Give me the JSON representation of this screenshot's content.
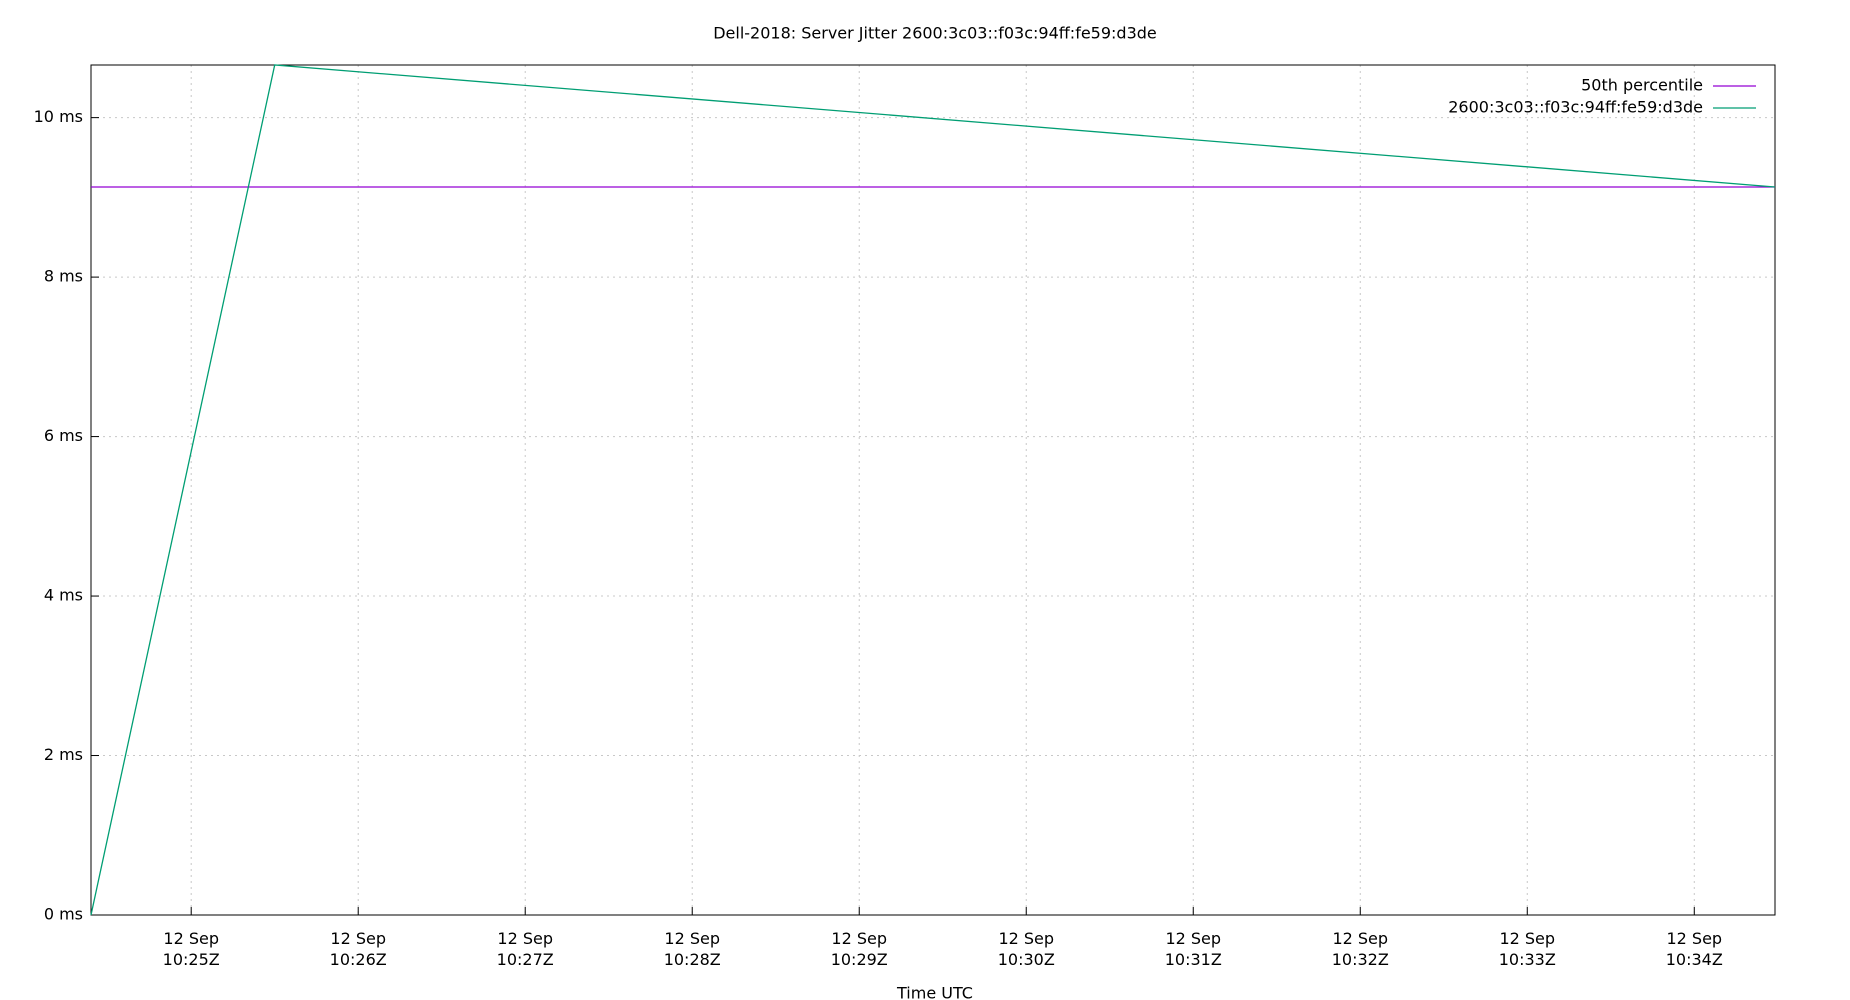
{
  "chart_data": {
    "type": "line",
    "title": "Dell-2018: Server Jitter 2600:3c03::f03c:94ff:fe59:d3de",
    "x_label": "Time UTC",
    "x": [
      "12 Sep 10:24:24",
      "12 Sep 10:25:30",
      "12 Sep 10:34:29"
    ],
    "series": [
      {
        "name": "50th percentile",
        "color": "#9400d3",
        "values": [
          9.13,
          9.13,
          9.13
        ]
      },
      {
        "name": "2600:3c03::f03c:94ff:fe59:d3de",
        "color": "#009e73",
        "values": [
          0,
          10.66,
          9.13
        ]
      }
    ],
    "xlim": [
      "12 Sep 10:24:24",
      "12 Sep 10:34:29"
    ],
    "xticks": [
      {
        "value": "12 Sep 10:25",
        "label": "12 Sep 10:25Z"
      },
      {
        "value": "12 Sep 10:26",
        "label": "12 Sep 10:26Z"
      },
      {
        "value": "12 Sep 10:27",
        "label": "12 Sep 10:27Z"
      },
      {
        "value": "12 Sep 10:28",
        "label": "12 Sep 10:28Z"
      },
      {
        "value": "12 Sep 10:29",
        "label": "12 Sep 10:29Z"
      },
      {
        "value": "12 Sep 10:30",
        "label": "12 Sep 10:30Z"
      },
      {
        "value": "12 Sep 10:31",
        "label": "12 Sep 10:31Z"
      },
      {
        "value": "12 Sep 10:32",
        "label": "12 Sep 10:32Z"
      },
      {
        "value": "12 Sep 10:33",
        "label": "12 Sep 10:33Z"
      },
      {
        "value": "12 Sep 10:34",
        "label": "12 Sep 10:34Z"
      }
    ],
    "ylim": [
      0,
      10.66
    ],
    "yticks": [
      {
        "value": 0,
        "label": "0 ms"
      },
      {
        "value": 2,
        "label": "2 ms"
      },
      {
        "value": 4,
        "label": "4 ms"
      },
      {
        "value": 6,
        "label": "6 ms"
      },
      {
        "value": 8,
        "label": "8 ms"
      },
      {
        "value": 10,
        "label": "10 ms"
      }
    ],
    "grid": true,
    "legend": "top-right"
  }
}
